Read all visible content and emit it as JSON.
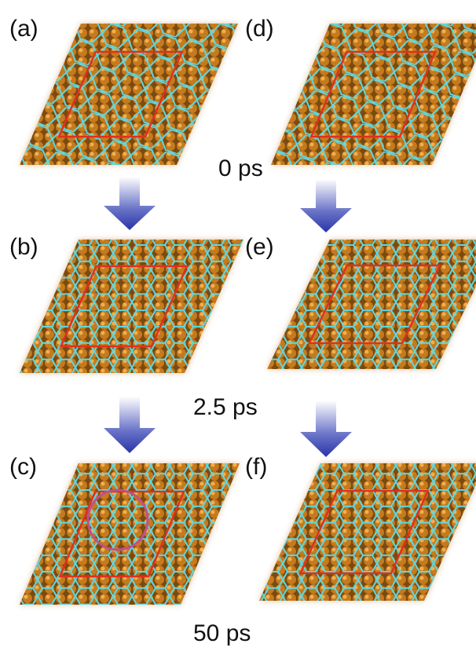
{
  "panels": [
    {
      "label": "(a)"
    },
    {
      "label": "(b)"
    },
    {
      "label": "(c)"
    },
    {
      "label": "(d)"
    },
    {
      "label": "(e)"
    },
    {
      "label": "(f)"
    }
  ],
  "times": [
    "0 ps",
    "2.5 ps",
    "50 ps"
  ]
}
